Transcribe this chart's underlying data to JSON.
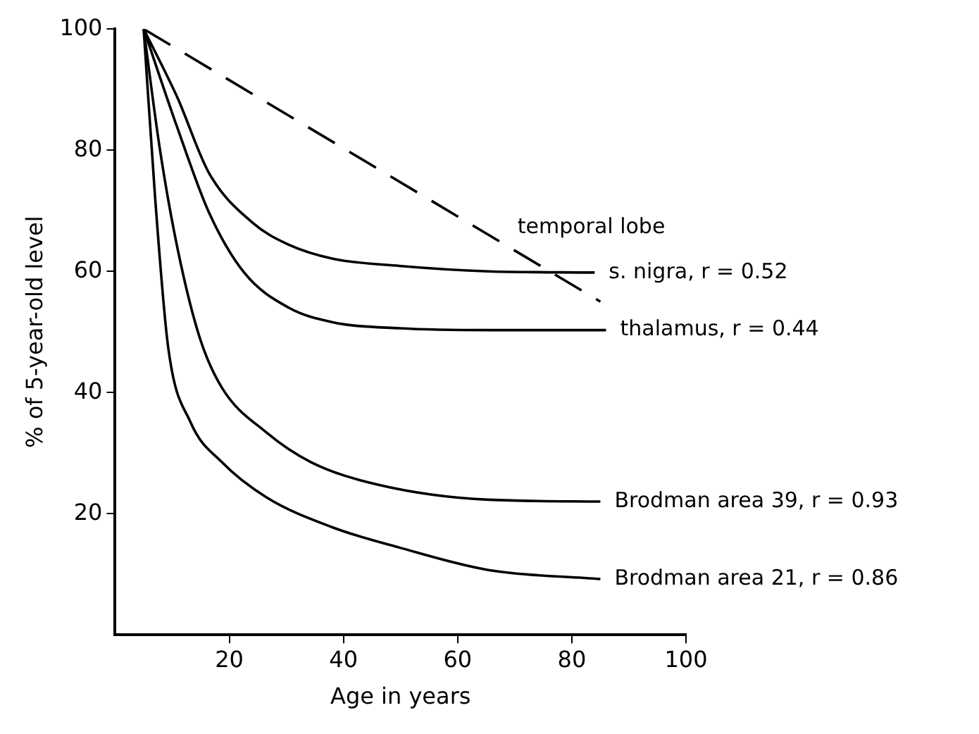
{
  "chart_data": {
    "type": "line",
    "xlabel": "Age in years",
    "ylabel": "% of 5-year-old level",
    "xlim": [
      0,
      100
    ],
    "ylim": [
      0,
      100
    ],
    "xticks": [
      20,
      40,
      60,
      80,
      100
    ],
    "yticks": [
      20,
      40,
      60,
      80,
      100
    ],
    "grid": false,
    "legend": false,
    "marker": "none",
    "series": [
      {
        "name": "s. nigra, r = 0.52",
        "color": "#000000",
        "line_style": "solid",
        "x": [
          5,
          10.9,
          16.4,
          24.1,
          30.4,
          38.1,
          49.8,
          65.4,
          84
        ],
        "values": [
          100,
          88.7,
          76.3,
          68,
          64.4,
          62.1,
          60.9,
          60,
          59.8
        ]
      },
      {
        "name": "thalamus, r = 0.44",
        "color": "#000000",
        "line_style": "solid",
        "x": [
          5,
          10.9,
          16.4,
          22.6,
          30.4,
          38.1,
          49.8,
          65.4,
          86
        ],
        "values": [
          100,
          83.7,
          69.8,
          59.8,
          54,
          51.6,
          50.6,
          50.3,
          50.3
        ]
      },
      {
        "name": "temporal lobe",
        "color": "#000000",
        "line_style": "dashed",
        "x": [
          5,
          85
        ],
        "values": [
          100,
          55
        ]
      },
      {
        "name": "Brodman area 39, r = 0.93",
        "color": "#000000",
        "line_style": "solid",
        "x": [
          5,
          7.8,
          10.9,
          14.8,
          18.7,
          26.5,
          34.3,
          46,
          65.4,
          85
        ],
        "values": [
          100,
          80.4,
          63.9,
          49.1,
          40.8,
          33.4,
          28.5,
          24.8,
          22.3,
          22
        ]
      },
      {
        "name": "Brodman area 21, r = 0.86",
        "color": "#000000",
        "line_style": "solid",
        "x": [
          5,
          7,
          9.3,
          13.2,
          18.7,
          26.5,
          38.2,
          49.8,
          65.4,
          85
        ],
        "values": [
          100,
          72.2,
          47.4,
          35.1,
          28.5,
          22.7,
          17.7,
          14.4,
          10.7,
          9.2
        ]
      }
    ]
  }
}
